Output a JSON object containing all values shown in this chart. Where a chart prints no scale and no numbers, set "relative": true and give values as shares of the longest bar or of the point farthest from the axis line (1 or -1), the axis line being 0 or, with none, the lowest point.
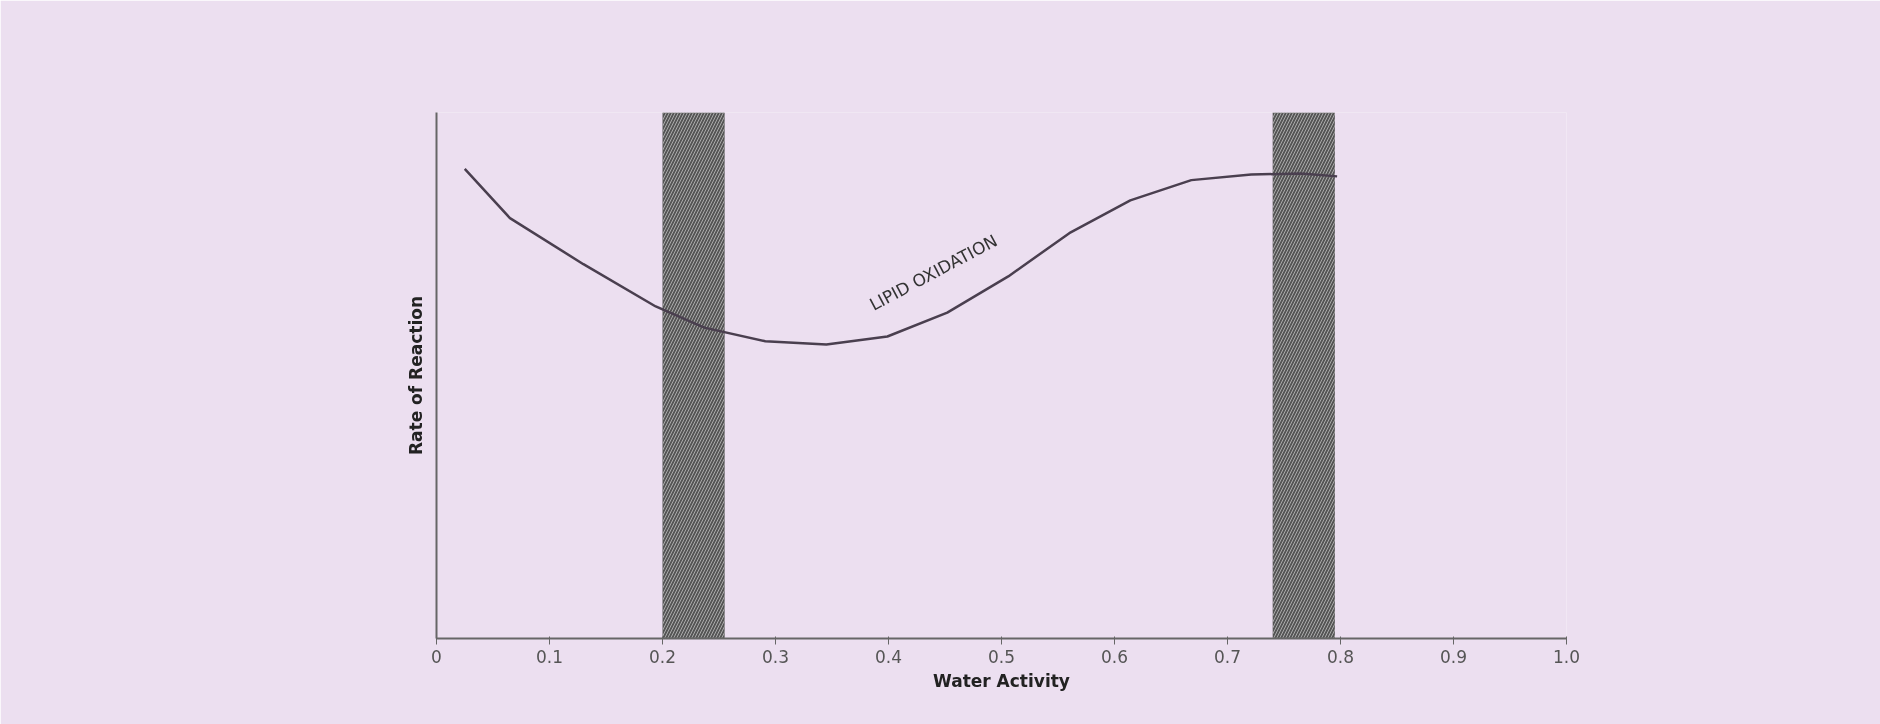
{
  "chart_data": {
    "type": "line",
    "relative": true,
    "xlabel": "Water Activity",
    "ylabel": "Rate of Reaction",
    "x": [
      0.025,
      0.065,
      0.13,
      0.194,
      0.237,
      0.291,
      0.345,
      0.399,
      0.452,
      0.506,
      0.56,
      0.614,
      0.668,
      0.721,
      0.765,
      0.797
    ],
    "series": [
      {
        "color": "#4a3f4f",
        "values": [
          1,
          0.895,
          0.797,
          0.707,
          0.662,
          0.633,
          0.626,
          0.643,
          0.694,
          0.771,
          0.863,
          0.933,
          0.976,
          0.988,
          0.99,
          0.984
        ]
      }
    ],
    "xlim": [
      0,
      1.0
    ],
    "xticks": [
      0,
      0.1,
      0.2,
      0.3,
      0.4,
      0.5,
      0.6,
      0.7,
      0.8,
      0.9,
      {
        "value": 1.0,
        "label": "1.0"
      }
    ],
    "bands": [
      {
        "axis": "x",
        "from": 0.2,
        "to": 0.255,
        "color": "#555555"
      },
      {
        "axis": "x",
        "from": 0.74,
        "to": 0.795,
        "color": "#555555"
      }
    ],
    "annotations": [
      "LIPID OXIDATION"
    ],
    "grid": false,
    "tick_labels": "x",
    "line_style": "solid",
    "marker": "none"
  }
}
